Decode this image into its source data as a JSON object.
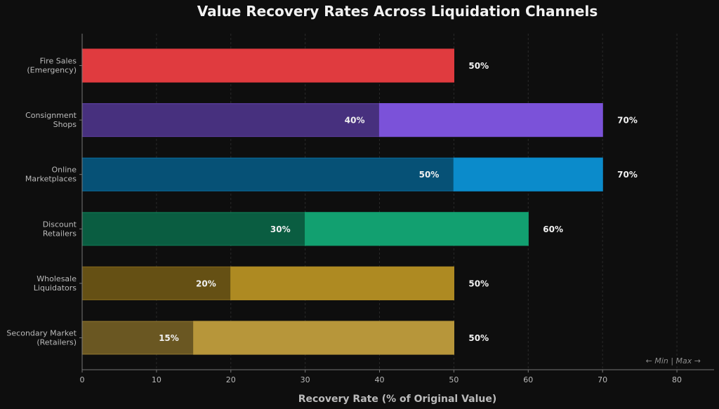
{
  "chart_data": {
    "type": "bar",
    "orientation": "horizontal",
    "stacked_range": true,
    "title": "Value Recovery Rates Across Liquidation Channels",
    "xlabel": "Recovery Rate (% of Original Value)",
    "ylabel": "",
    "xlim": [
      0,
      85
    ],
    "xticks": [
      0,
      10,
      20,
      30,
      40,
      50,
      60,
      70,
      80
    ],
    "grid": true,
    "legend_note": "← Min | Max →",
    "categories": [
      {
        "label_lines": [
          "Fire Sales",
          "(Emergency)"
        ],
        "min": 50,
        "max": 50,
        "min_label": "",
        "max_label": "50%",
        "color": "#e03b3f"
      },
      {
        "label_lines": [
          "Consignment",
          "Shops"
        ],
        "min": 40,
        "max": 70,
        "min_label": "40%",
        "max_label": "70%",
        "color": "#7b52d9"
      },
      {
        "label_lines": [
          "Online",
          "Marketplaces"
        ],
        "min": 50,
        "max": 70,
        "min_label": "50%",
        "max_label": "70%",
        "color": "#0b8bcb"
      },
      {
        "label_lines": [
          "Discount",
          "Retailers"
        ],
        "min": 30,
        "max": 60,
        "min_label": "30%",
        "max_label": "60%",
        "color": "#12a070"
      },
      {
        "label_lines": [
          "Wholesale",
          "Liquidators"
        ],
        "min": 20,
        "max": 50,
        "min_label": "20%",
        "max_label": "50%",
        "color": "#ae8a22"
      },
      {
        "label_lines": [
          "Secondary Market",
          "(Retailers)"
        ],
        "min": 15,
        "max": 50,
        "min_label": "15%",
        "max_label": "50%",
        "color": "#b7963a"
      }
    ],
    "colors": {
      "background": "#0e0e0e",
      "axis": "#777777",
      "grid": "#2a2a2a",
      "text": "#bbbbbb",
      "title": "#f2f2f2",
      "value_label": "#f0f0f0",
      "note": "#8a8a8a"
    }
  }
}
